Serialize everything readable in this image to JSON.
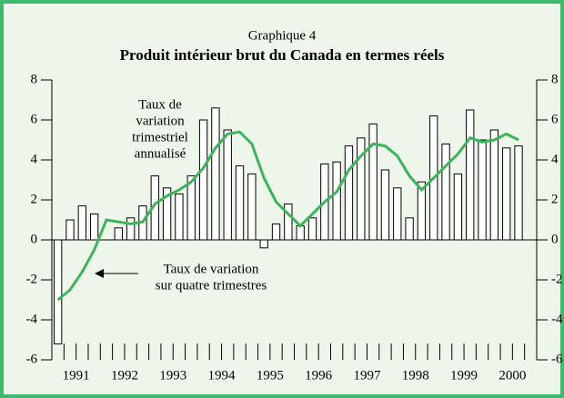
{
  "chart_data": {
    "type": "bar_line",
    "subtitle": "Graphique 4",
    "title": "Produit intérieur brut du Canada en termes réels",
    "year_labels": [
      "1991",
      "1992",
      "1993",
      "1994",
      "1995",
      "1996",
      "1997",
      "1998",
      "1999",
      "2000"
    ],
    "series": [
      {
        "name": "Taux de variation trimestriel annualisé",
        "kind": "bar",
        "color": "#ffffff",
        "values": [
          -5.2,
          1.0,
          1.7,
          1.3,
          0,
          0.6,
          1.1,
          1.7,
          3.2,
          2.6,
          2.3,
          3.2,
          6.0,
          6.6,
          5.5,
          3.7,
          3.3,
          -0.4,
          0.8,
          1.8,
          0.7,
          1.1,
          3.8,
          3.9,
          4.7,
          5.1,
          5.8,
          3.5,
          2.6,
          1.1,
          2.9,
          6.2,
          4.8,
          3.3,
          6.5,
          5.0,
          5.5,
          4.6,
          4.7,
          null
        ]
      },
      {
        "name": "Taux de variation sur quatre trimestres",
        "kind": "line",
        "color": "#3cb55a",
        "values": [
          -3.0,
          -2.5,
          -1.6,
          -0.5,
          1.0,
          0.9,
          0.8,
          0.9,
          1.8,
          2.2,
          2.5,
          2.9,
          3.6,
          4.6,
          5.3,
          5.4,
          4.8,
          3.1,
          1.9,
          1.3,
          0.7,
          1.3,
          1.9,
          2.4,
          3.5,
          4.2,
          4.8,
          4.7,
          4.2,
          3.2,
          2.5,
          3.1,
          3.7,
          4.3,
          5.1,
          4.9,
          5.0,
          5.3,
          5.0,
          null
        ]
      }
    ],
    "annotations": [
      {
        "lines": [
          "Taux de",
          "variation",
          "trimestriel",
          "annualisé"
        ]
      },
      {
        "lines": [
          "Taux de variation",
          "sur quatre trimestres"
        ]
      }
    ],
    "ylim": [
      -6,
      8
    ],
    "yticks": [
      8,
      6,
      4,
      2,
      0,
      -2,
      -4,
      -6
    ]
  }
}
